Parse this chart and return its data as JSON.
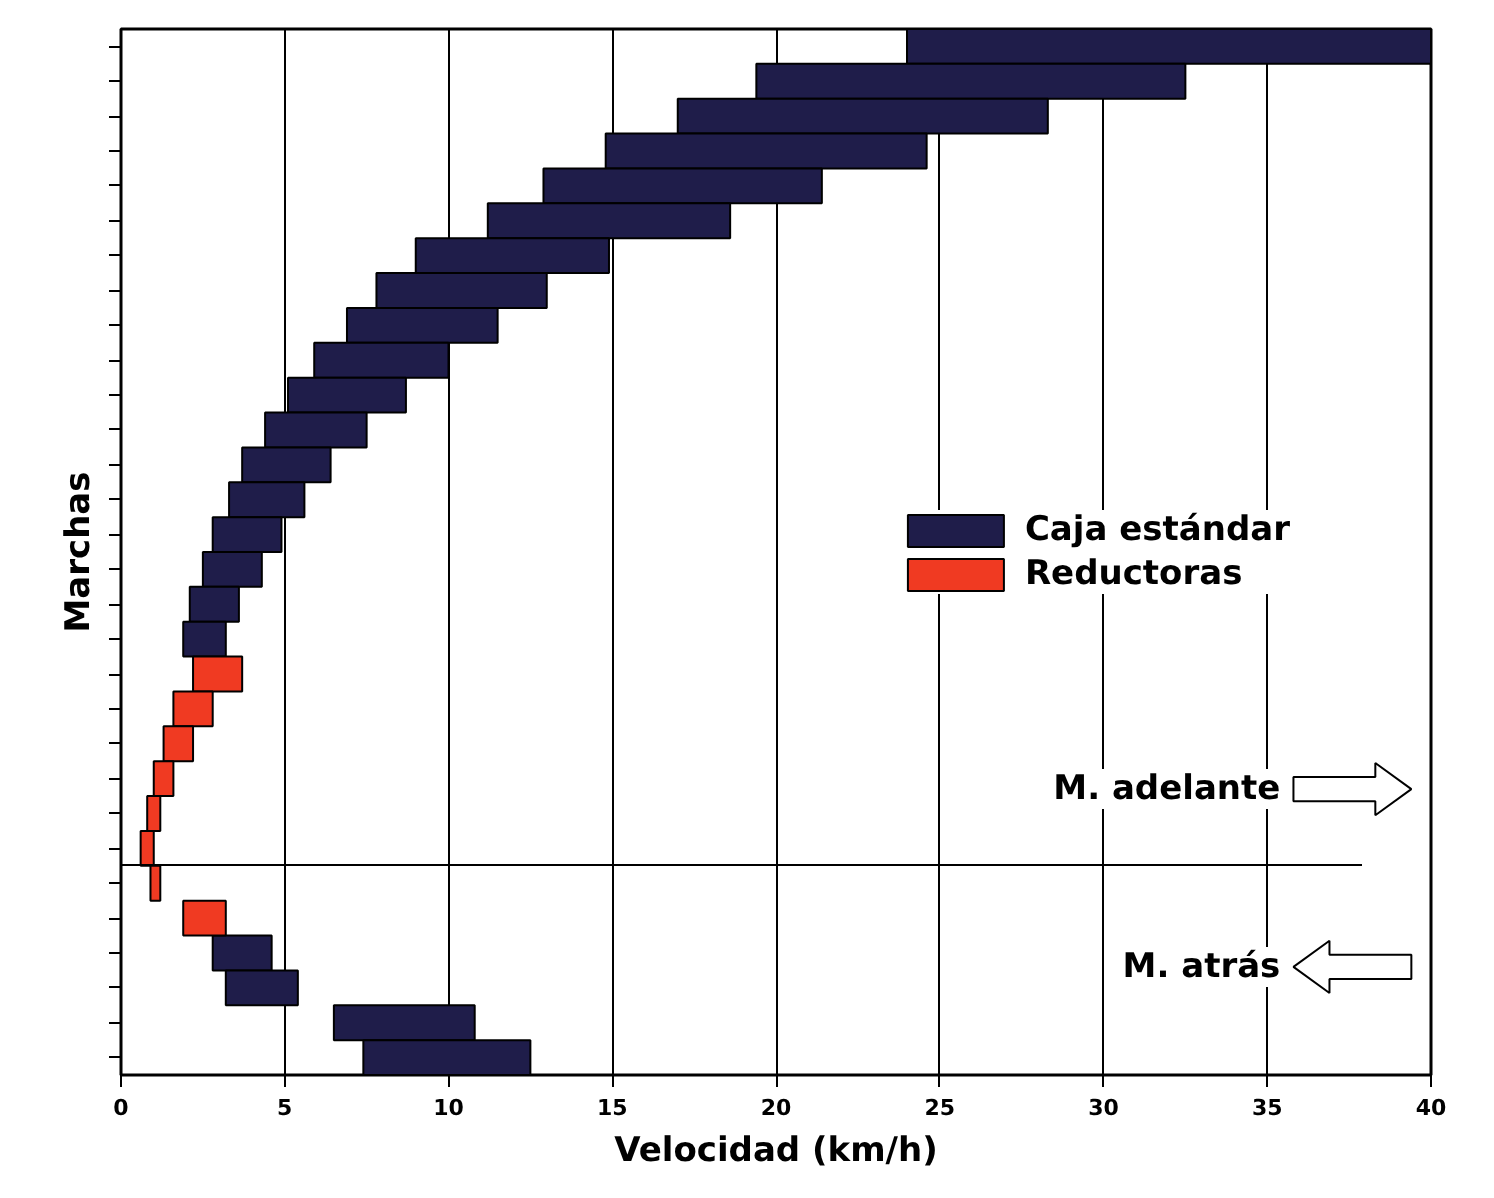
{
  "chart_data": {
    "type": "bar",
    "orientation": "horizontal",
    "xlabel": "Velocidad (km/h)",
    "ylabel": "Marchas",
    "categories": [
      null,
      null,
      null,
      null,
      null,
      null,
      null,
      null,
      null,
      null,
      null,
      null,
      null,
      null,
      null,
      null,
      null,
      null,
      null,
      null,
      null,
      null,
      null,
      null,
      null,
      null,
      null,
      null,
      null,
      null
    ],
    "series": [
      {
        "name": "Caja estándar",
        "color": "#1f1d4a",
        "base": [
          24,
          19.4,
          17.0,
          14.8,
          12.9,
          11.2,
          9.0,
          7.8,
          6.9,
          5.9,
          5.1,
          4.4,
          3.7,
          3.3,
          2.8,
          2.5,
          2.1,
          1.9,
          null,
          null,
          null,
          null,
          null,
          null,
          null,
          null,
          2.8,
          3.2,
          6.5,
          7.4
        ],
        "values": [
          16,
          13.1,
          11.3,
          9.8,
          8.5,
          7.4,
          5.9,
          5.2,
          4.6,
          4.1,
          3.6,
          3.1,
          2.7,
          2.3,
          2.1,
          1.8,
          1.5,
          1.3,
          null,
          null,
          null,
          null,
          null,
          null,
          null,
          null,
          1.8,
          2.2,
          4.3,
          5.1
        ]
      },
      {
        "name": "Reductoras",
        "color": "#f03a22",
        "base": [
          null,
          null,
          null,
          null,
          null,
          null,
          null,
          null,
          null,
          null,
          null,
          null,
          null,
          null,
          null,
          null,
          null,
          null,
          2.2,
          1.6,
          1.3,
          1.0,
          0.8,
          0.6,
          0.9,
          1.9,
          null,
          null,
          null,
          null
        ],
        "values": [
          null,
          null,
          null,
          null,
          null,
          null,
          null,
          null,
          null,
          null,
          null,
          null,
          null,
          null,
          null,
          null,
          null,
          null,
          1.5,
          1.2,
          0.9,
          0.6,
          0.4,
          0.4,
          0.3,
          1.3,
          null,
          null,
          null,
          null
        ]
      }
    ],
    "xlim": [
      0,
      40
    ],
    "xticks": [
      0,
      5,
      10,
      15,
      20,
      25,
      30,
      35,
      40
    ],
    "annotations": [
      "M. adelante",
      "M. atrás"
    ],
    "grid": "x",
    "legend": "right",
    "tick_labels": "x"
  }
}
